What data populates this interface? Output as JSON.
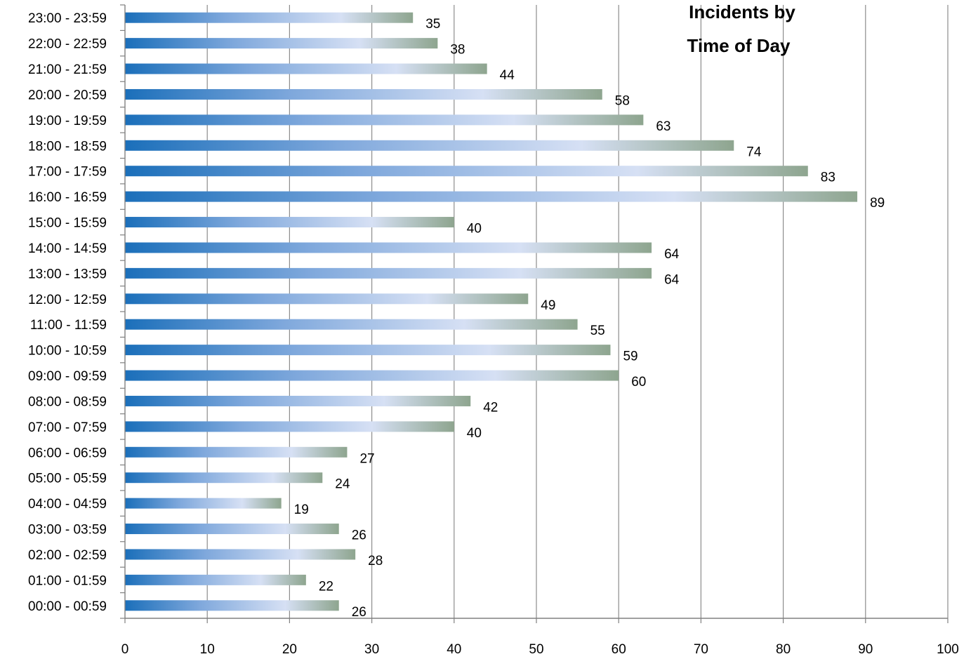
{
  "chart_data": {
    "type": "bar",
    "orientation": "horizontal",
    "title_lines": [
      "Incidents by",
      "Time of Day"
    ],
    "xlabel": "",
    "ylabel": "",
    "xlim": [
      0,
      100
    ],
    "x_ticks": [
      0,
      10,
      20,
      30,
      40,
      50,
      60,
      70,
      80,
      90,
      100
    ],
    "grid": "vertical",
    "legend": "none",
    "categories": [
      "00:00 - 00:59",
      "01:00 - 01:59",
      "02:00 - 02:59",
      "03:00 - 03:59",
      "04:00 - 04:59",
      "05:00 - 05:59",
      "06:00 - 06:59",
      "07:00 - 07:59",
      "08:00 - 08:59",
      "09:00 - 09:59",
      "10:00 - 10:59",
      "11:00 - 11:59",
      "12:00 - 12:59",
      "13:00 - 13:59",
      "14:00 - 14:59",
      "15:00 - 15:59",
      "16:00 - 16:59",
      "17:00 - 17:59",
      "18:00 - 18:59",
      "19:00 - 19:59",
      "20:00 - 20:59",
      "21:00 - 21:59",
      "22:00 - 22:59",
      "23:00 - 23:59"
    ],
    "values": [
      26,
      22,
      28,
      26,
      19,
      24,
      27,
      40,
      42,
      60,
      59,
      55,
      49,
      64,
      64,
      40,
      89,
      83,
      74,
      63,
      58,
      44,
      38,
      35
    ],
    "colors": {
      "bar_start": "#1b6fba",
      "bar_mid": "#d6e0f4",
      "bar_end": "#8ea58f",
      "grid": "#8c8c8c",
      "axis": "#808080"
    }
  }
}
